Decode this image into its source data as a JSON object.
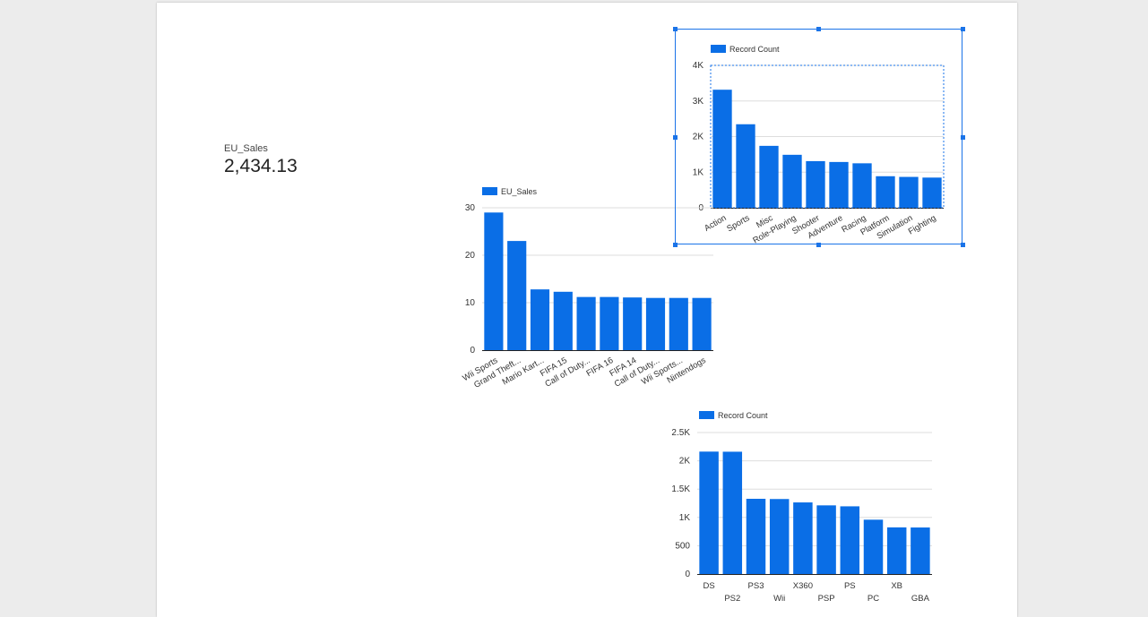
{
  "scorecard": {
    "label": "EU_Sales",
    "value": "2,434.13"
  },
  "colors": {
    "bar": "#0a6ee6",
    "grid": "#dddddd",
    "axis": "#222222",
    "text": "#333333",
    "selection": "#1a73e8"
  },
  "chart_data": [
    {
      "id": "chart-genre",
      "type": "bar",
      "legend": "Record Count",
      "categories": [
        "Action",
        "Sports",
        "Misc",
        "Role-Playing",
        "Shooter",
        "Adventure",
        "Racing",
        "Platform",
        "Simulation",
        "Fighting"
      ],
      "values": [
        3316,
        2346,
        1739,
        1488,
        1310,
        1286,
        1249,
        886,
        867,
        848
      ],
      "ylim": [
        0,
        4000
      ],
      "ticks": [
        0,
        1000,
        2000,
        3000,
        4000
      ],
      "tick_labels": [
        "0",
        "1K",
        "2K",
        "3K",
        "4K"
      ],
      "label_rotation": -30,
      "grid": true
    },
    {
      "id": "chart-names",
      "type": "bar",
      "legend": "EU_Sales",
      "categories": [
        "Wii Sports",
        "Grand Theft...",
        "Mario Kart...",
        "FIFA 15",
        "Call of Duty...",
        "FIFA 16",
        "FIFA 14",
        "Call of Duty...",
        "Wii Sports...",
        "Nintendogs"
      ],
      "values": [
        29.0,
        23.0,
        12.8,
        12.3,
        11.2,
        11.2,
        11.1,
        11.0,
        11.0,
        11.0
      ],
      "ylim": [
        0,
        30
      ],
      "ticks": [
        0,
        10,
        20,
        30
      ],
      "tick_labels": [
        "0",
        "10",
        "20",
        "30"
      ],
      "label_rotation": -30,
      "grid": true
    },
    {
      "id": "chart-platform",
      "type": "bar",
      "legend": "Record Count",
      "categories": [
        "DS",
        "PS2",
        "PS3",
        "Wii",
        "X360",
        "PSP",
        "PS",
        "PC",
        "XB",
        "GBA"
      ],
      "values": [
        2163,
        2161,
        1329,
        1325,
        1265,
        1213,
        1196,
        960,
        824,
        822
      ],
      "ylim": [
        0,
        2500
      ],
      "ticks": [
        0,
        500,
        1000,
        1500,
        2000,
        2500
      ],
      "tick_labels": [
        "0",
        "500",
        "1K",
        "1.5K",
        "2K",
        "2.5K"
      ],
      "label_rotation": 0,
      "grid": true
    }
  ]
}
